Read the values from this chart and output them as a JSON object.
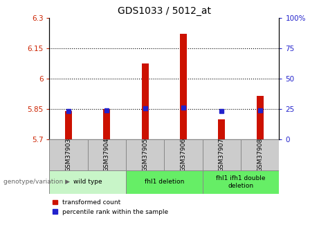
{
  "title": "GDS1033 / 5012_at",
  "samples": [
    "GSM37903",
    "GSM37904",
    "GSM37905",
    "GSM37906",
    "GSM37907",
    "GSM37908"
  ],
  "red_values": [
    5.838,
    5.848,
    6.075,
    6.22,
    5.8,
    5.915
  ],
  "blue_values": [
    5.838,
    5.842,
    5.852,
    5.856,
    5.84,
    5.844
  ],
  "ylim": [
    5.7,
    6.3
  ],
  "yticks": [
    5.7,
    5.85,
    6.0,
    6.15,
    6.3
  ],
  "ytick_labels": [
    "5.7",
    "5.85",
    "6",
    "6.15",
    "6.3"
  ],
  "right_yticks": [
    0,
    25,
    50,
    75,
    100
  ],
  "right_ytick_labels": [
    "0",
    "25",
    "50",
    "75",
    "100%"
  ],
  "hlines": [
    5.85,
    6.0,
    6.15
  ],
  "group_configs": [
    {
      "indices": [
        0,
        1
      ],
      "label": "wild type",
      "color": "#c8f5c8"
    },
    {
      "indices": [
        2,
        3
      ],
      "label": "fhl1 deletion",
      "color": "#66ee66"
    },
    {
      "indices": [
        4,
        5
      ],
      "label": "fhl1 ifh1 double\ndeletion",
      "color": "#66ee66"
    }
  ],
  "bar_color": "#cc1100",
  "dot_color": "#2222cc",
  "bar_width": 0.18,
  "legend_labels": [
    "transformed count",
    "percentile rank within the sample"
  ],
  "genotype_label": "genotype/variation",
  "left_axis_color": "#cc2200",
  "right_axis_color": "#2222cc",
  "sample_box_color": "#cccccc",
  "sample_box_edge": "#888888"
}
